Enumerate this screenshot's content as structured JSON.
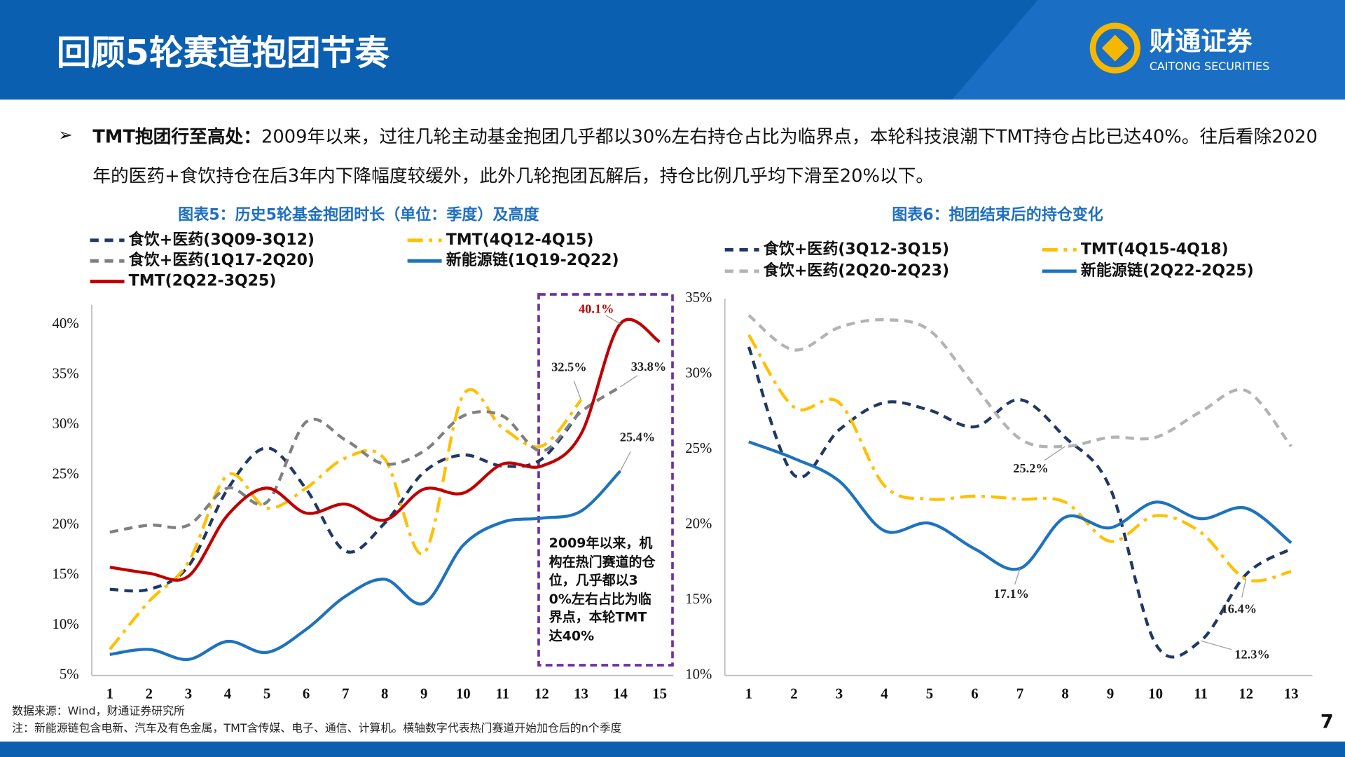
{
  "header": {
    "title": "回顾5轮赛道抱团节奏",
    "logo_cn": "财通证券",
    "logo_en": "CAITONG SECURITIES"
  },
  "bullet": {
    "lead": "TMT抱团行至高处：",
    "text": "2009年以来，过往几轮主动基金抱团几乎都以30%左右持仓占比为临界点，本轮科技浪潮下TMT持仓占比已达40%。往后看除2020年的医药+食饮持仓在后3年内下降幅度较缓外，此外几轮抱团瓦解后，持仓比例几乎均下滑至20%以下。"
  },
  "chart_data": [
    {
      "type": "line",
      "title": "图表5：历史5轮基金抱团时长（单位：季度）及高度",
      "x": [
        1,
        2,
        3,
        4,
        5,
        6,
        7,
        8,
        9,
        10,
        11,
        12,
        13,
        14,
        15
      ],
      "xlim": [
        0.54,
        15.35
      ],
      "xticks": [
        1,
        2,
        3,
        4,
        5,
        6,
        7,
        8,
        9,
        10,
        11,
        12,
        13,
        14,
        15
      ],
      "ylim": [
        5,
        42
      ],
      "yticks": [
        {
          "value": 5,
          "label": "5%"
        },
        {
          "value": 10,
          "label": "10%"
        },
        {
          "value": 15,
          "label": "15%"
        },
        {
          "value": 20,
          "label": "20%"
        },
        {
          "value": 25,
          "label": "25%"
        },
        {
          "value": 30,
          "label": "30%"
        },
        {
          "value": 35,
          "label": "35%"
        },
        {
          "value": 40,
          "label": "40%"
        }
      ],
      "series": [
        {
          "name": "食饮+医药(3Q09-3Q12)",
          "color": "#203864",
          "dash": "dash",
          "values": [
            13.6,
            13.6,
            15.9,
            23.6,
            27.7,
            23.6,
            17.4,
            20.2,
            25.3,
            27.0,
            25.9,
            26.6,
            31.5,
            null,
            null
          ]
        },
        {
          "name": "TMT(4Q12-4Q15)",
          "color": "#ffc000",
          "dash": "dashdot",
          "values": [
            7.6,
            12.4,
            16.3,
            25.0,
            21.7,
            23.7,
            26.7,
            26.6,
            17.2,
            33.0,
            29.7,
            27.9,
            32.5,
            null,
            null
          ],
          "value_labels": [
            null,
            null,
            null,
            null,
            null,
            null,
            null,
            null,
            null,
            null,
            null,
            null,
            "32.5%",
            null,
            null
          ]
        },
        {
          "name": "食饮+医药(1Q17-2Q20)",
          "color": "#808080",
          "dash": "dash",
          "values": [
            19.3,
            20.0,
            20.0,
            23.7,
            22.3,
            30.3,
            28.5,
            26.1,
            27.4,
            30.9,
            30.9,
            27.4,
            31.3,
            33.8,
            null
          ],
          "value_labels": [
            null,
            null,
            null,
            null,
            null,
            null,
            null,
            null,
            null,
            null,
            null,
            null,
            null,
            "33.8%",
            null
          ]
        },
        {
          "name": "新能源链(1Q19-2Q22)",
          "color": "#1e73be",
          "dash": "solid",
          "values": [
            7.1,
            7.6,
            6.6,
            8.4,
            7.3,
            9.6,
            12.9,
            14.6,
            12.2,
            18.0,
            20.3,
            20.7,
            21.4,
            25.4,
            null
          ],
          "value_labels": [
            null,
            null,
            null,
            null,
            null,
            null,
            null,
            null,
            null,
            null,
            null,
            null,
            null,
            "25.4%",
            null
          ]
        },
        {
          "name": "TMT(2Q22-3Q25)",
          "color": "#c00000",
          "dash": "solid",
          "values": [
            15.8,
            15.2,
            14.9,
            21.0,
            23.7,
            21.2,
            22.1,
            20.5,
            23.6,
            23.2,
            26.1,
            25.9,
            29.1,
            40.1,
            38.3
          ],
          "value_labels": [
            null,
            null,
            null,
            null,
            null,
            null,
            null,
            null,
            null,
            null,
            null,
            null,
            null,
            "40.1%",
            null
          ]
        }
      ]
    },
    {
      "type": "line",
      "title": "图表6：抱团结束后的持仓变化",
      "x": [
        1,
        2,
        3,
        4,
        5,
        6,
        7,
        8,
        9,
        10,
        11,
        12,
        13
      ],
      "xlim": [
        0.47,
        13.47
      ],
      "xticks": [
        1,
        2,
        3,
        4,
        5,
        6,
        7,
        8,
        9,
        10,
        11,
        12,
        13
      ],
      "ylim": [
        10,
        35
      ],
      "yticks": [
        {
          "value": 10,
          "label": "10%"
        },
        {
          "value": 15,
          "label": "15%"
        },
        {
          "value": 20,
          "label": "20%"
        },
        {
          "value": 25,
          "label": "25%"
        },
        {
          "value": 30,
          "label": "30%"
        },
        {
          "value": 35,
          "label": "35%"
        }
      ],
      "series": [
        {
          "name": "食饮+医药(3Q12-3Q15)",
          "color": "#203864",
          "dash": "dash",
          "values": [
            31.8,
            23.3,
            26.3,
            28.1,
            27.6,
            26.5,
            28.3,
            25.8,
            22.4,
            12.1,
            12.3,
            16.7,
            18.4
          ],
          "value_labels": [
            null,
            null,
            null,
            null,
            null,
            null,
            null,
            null,
            null,
            null,
            "12.3%",
            null,
            null
          ]
        },
        {
          "name": "TMT(4Q15-4Q18)",
          "color": "#ffc000",
          "dash": "dashdot",
          "values": [
            32.6,
            27.8,
            28.1,
            22.6,
            21.7,
            21.9,
            21.7,
            21.5,
            18.9,
            20.6,
            19.5,
            16.4,
            16.9
          ],
          "value_labels": [
            null,
            null,
            null,
            null,
            null,
            null,
            null,
            null,
            null,
            null,
            null,
            "16.4%",
            null
          ]
        },
        {
          "name": "食饮+医药(2Q20-2Q23)",
          "color": "#b3b3b3",
          "dash": "dash",
          "values": [
            33.9,
            31.6,
            33.1,
            33.6,
            32.9,
            29.2,
            25.7,
            25.2,
            25.8,
            25.8,
            27.5,
            28.9,
            25.2
          ],
          "value_labels": [
            null,
            null,
            null,
            null,
            null,
            null,
            null,
            "25.2%",
            null,
            null,
            null,
            null,
            null
          ]
        },
        {
          "name": "新能源链(2Q22-2Q25)",
          "color": "#1e73be",
          "dash": "solid",
          "values": [
            25.5,
            24.4,
            22.9,
            19.6,
            20.1,
            18.4,
            17.1,
            20.5,
            19.8,
            21.5,
            20.4,
            21.1,
            18.8
          ],
          "value_labels": [
            null,
            null,
            null,
            null,
            null,
            null,
            "17.1%",
            null,
            null,
            null,
            null,
            null,
            null
          ]
        }
      ]
    }
  ],
  "annotation": "2009年以来，机构在热门赛道的仓位，几乎都以30%左右占比为临界点，本轮TMT达40%",
  "footer": {
    "source": "数据来源：Wind，财通证券研究所",
    "note": "注：新能源链包含电新、汽车及有色金属，TMT含传媒、电子、通信、计算机。横轴数字代表热门赛道开始加仓后的n个季度"
  },
  "page_number": "7"
}
